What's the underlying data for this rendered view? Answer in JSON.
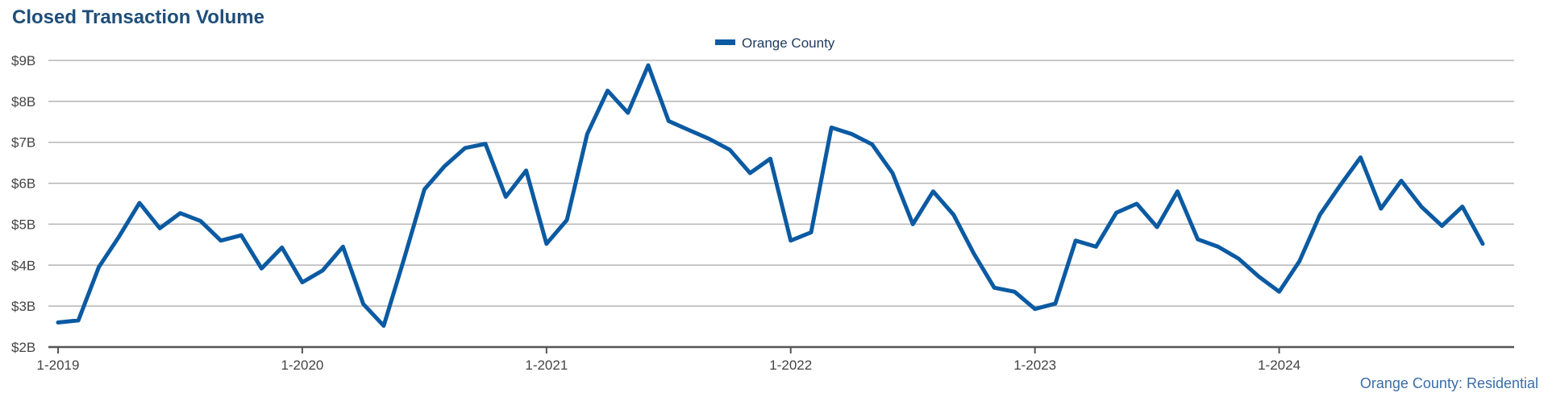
{
  "title": "Closed Transaction Volume",
  "source": "Orange County: Residential",
  "colors": {
    "line": "#0b5aa2",
    "grid": "#b5b5b5",
    "axis": "#555555",
    "text": "#444444"
  },
  "chart_data": {
    "type": "line",
    "title": "Closed Transaction Volume",
    "legend": {
      "position": "top-center"
    },
    "y_ticks": [
      "$2B",
      "$3B",
      "$4B",
      "$5B",
      "$6B",
      "$7B",
      "$8B",
      "$9B"
    ],
    "x_ticks": [
      "1-2019",
      "1-2020",
      "1-2021",
      "1-2022",
      "1-2023",
      "1-2024"
    ],
    "ylim": [
      2,
      9
    ],
    "y_unit": "billions USD",
    "grid": true,
    "series": [
      {
        "name": "Orange County",
        "x": [
          "2019-01",
          "2019-02",
          "2019-03",
          "2019-04",
          "2019-05",
          "2019-06",
          "2019-07",
          "2019-08",
          "2019-09",
          "2019-10",
          "2019-11",
          "2019-12",
          "2020-01",
          "2020-02",
          "2020-03",
          "2020-04",
          "2020-05",
          "2020-06",
          "2020-07",
          "2020-08",
          "2020-09",
          "2020-10",
          "2020-11",
          "2020-12",
          "2021-01",
          "2021-02",
          "2021-03",
          "2021-04",
          "2021-05",
          "2021-06",
          "2021-07",
          "2021-08",
          "2021-09",
          "2021-10",
          "2021-11",
          "2021-12",
          "2022-01",
          "2022-02",
          "2022-03",
          "2022-04",
          "2022-05",
          "2022-06",
          "2022-07",
          "2022-08",
          "2022-09",
          "2022-10",
          "2022-11",
          "2022-12",
          "2023-01",
          "2023-02",
          "2023-03",
          "2023-04",
          "2023-05",
          "2023-06",
          "2023-07",
          "2023-08",
          "2023-09",
          "2023-10",
          "2023-11",
          "2023-12",
          "2024-01",
          "2024-02",
          "2024-03",
          "2024-04",
          "2024-05",
          "2024-06",
          "2024-07",
          "2024-08",
          "2024-09",
          "2024-10",
          "2024-11"
        ],
        "values": [
          2.6,
          2.65,
          3.95,
          4.7,
          5.52,
          4.9,
          5.27,
          5.08,
          4.6,
          4.73,
          3.92,
          4.43,
          3.58,
          3.87,
          4.45,
          3.05,
          2.52,
          4.15,
          5.85,
          6.42,
          6.86,
          6.96,
          5.67,
          6.31,
          4.52,
          5.1,
          7.2,
          8.26,
          7.72,
          8.88,
          7.52,
          7.3,
          7.08,
          6.82,
          6.25,
          6.6,
          4.6,
          4.8,
          7.36,
          7.2,
          6.95,
          6.25,
          5.0,
          5.8,
          5.23,
          4.28,
          3.45,
          3.35,
          2.93,
          3.06,
          4.6,
          4.45,
          5.28,
          5.5,
          4.93,
          5.8,
          4.63,
          4.45,
          4.16,
          3.72,
          3.35,
          4.1,
          5.23,
          5.95,
          6.63,
          5.38,
          6.06,
          5.42,
          4.96,
          5.43,
          4.52
        ]
      }
    ]
  }
}
